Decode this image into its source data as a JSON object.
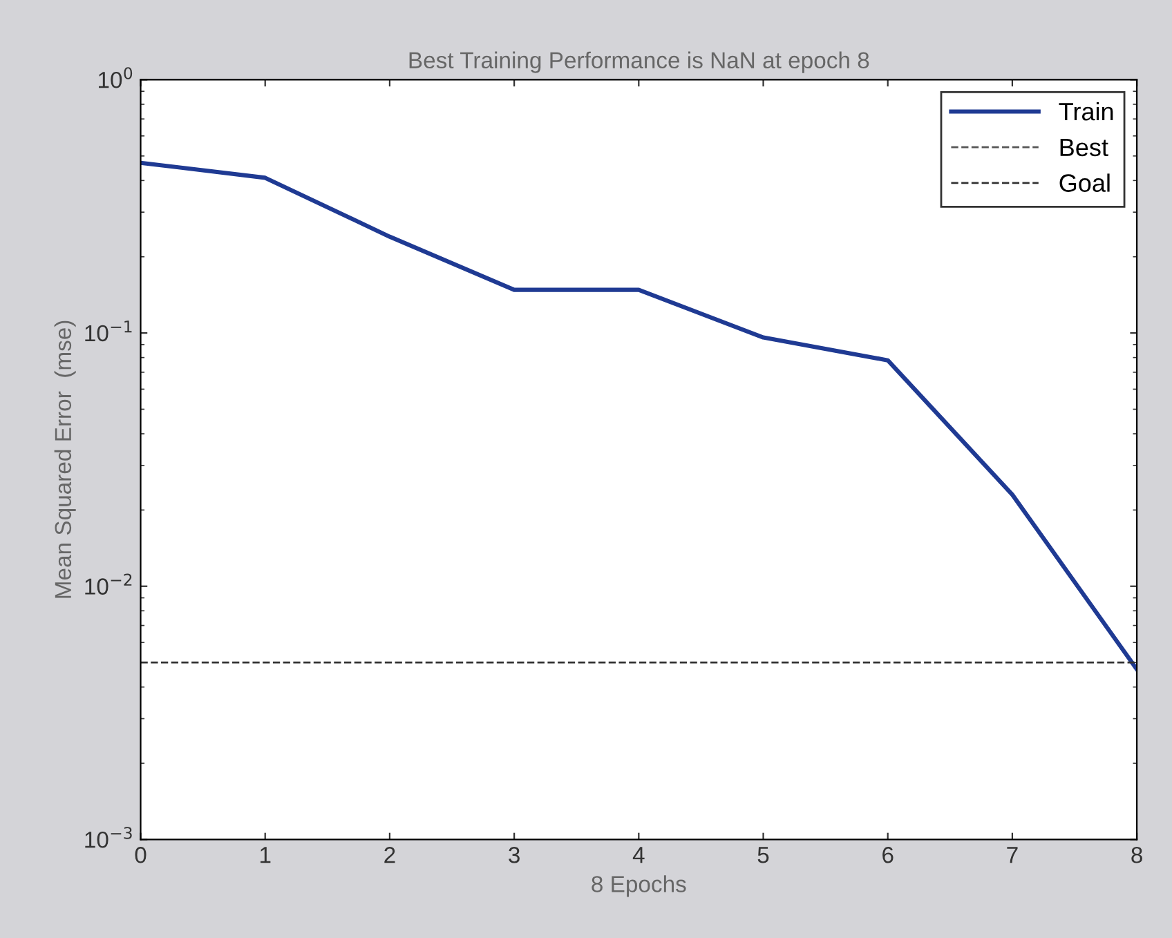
{
  "chart_data": {
    "type": "line",
    "title": "Best Training Performance is NaN at epoch 8",
    "xlabel": "8 Epochs",
    "ylabel": "Mean Squared Error  (mse)",
    "log": "y",
    "xlim": [
      0,
      8
    ],
    "xticks": [
      0,
      1,
      2,
      3,
      4,
      5,
      6,
      7,
      8
    ],
    "ylim": [
      0.001,
      1
    ],
    "yticks": [
      {
        "value": 0.001,
        "label": "10$^{−3}$"
      },
      {
        "value": 0.01,
        "label": "10$^{−2}$"
      },
      {
        "value": 0.1,
        "label": "10$^{−1}$"
      },
      {
        "value": 1,
        "label": "10$^{0}$"
      }
    ],
    "legend": "top right",
    "grid": false,
    "series": [
      {
        "name": "Train",
        "color": "#1f3a93",
        "line_style": "solid",
        "x": [
          0,
          1,
          2,
          3,
          4,
          5,
          6,
          7,
          8
        ],
        "values": [
          0.47,
          0.41,
          0.24,
          0.148,
          0.148,
          0.096,
          0.078,
          0.023,
          0.0047
        ]
      },
      {
        "name": "Best",
        "color": "#555555",
        "line_style": "dashed"
      },
      {
        "name": "Goal",
        "color": "#333333",
        "line_style": "dashed",
        "x": [
          0,
          8
        ],
        "values": [
          0.005,
          0.005
        ]
      }
    ]
  }
}
